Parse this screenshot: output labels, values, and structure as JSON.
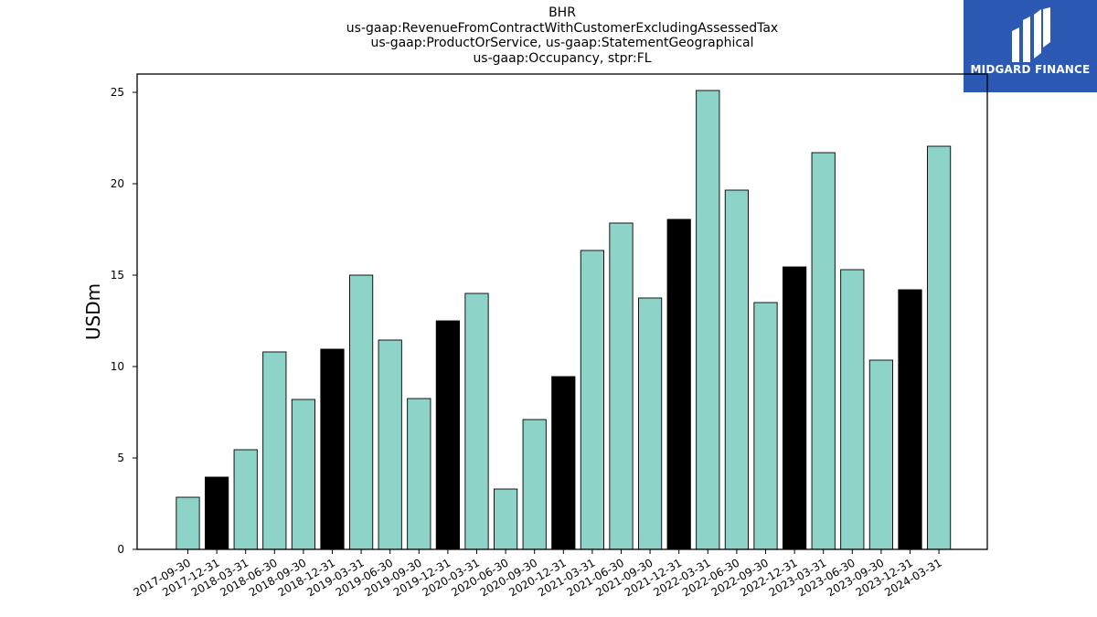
{
  "chart_data": {
    "type": "bar",
    "title_lines": [
      "BHR",
      "us-gaap:RevenueFromContractWithCustomerExcludingAssessedTax",
      "us-gaap:ProductOrService, us-gaap:StatementGeographical",
      "us-gaap:Occupancy, stpr:FL"
    ],
    "xlabel": "",
    "ylabel": "USDm",
    "ylim": [
      0,
      26
    ],
    "yticks": [
      0,
      5,
      10,
      15,
      20,
      25
    ],
    "grid": false,
    "categories": [
      "2017-09-30",
      "2017-12-31",
      "2018-03-31",
      "2018-06-30",
      "2018-09-30",
      "2018-12-31",
      "2019-03-31",
      "2019-06-30",
      "2019-09-30",
      "2019-12-31",
      "2020-03-31",
      "2020-06-30",
      "2020-09-30",
      "2020-12-31",
      "2021-03-31",
      "2021-06-30",
      "2021-09-30",
      "2021-12-31",
      "2022-03-31",
      "2022-06-30",
      "2022-09-30",
      "2022-12-31",
      "2023-03-31",
      "2023-06-30",
      "2023-09-30",
      "2023-12-31",
      "2024-03-31"
    ],
    "values": [
      2.85,
      3.95,
      5.45,
      10.8,
      8.2,
      10.95,
      15.0,
      11.45,
      8.25,
      12.5,
      14.0,
      3.3,
      7.1,
      9.45,
      16.35,
      17.85,
      13.75,
      18.05,
      25.1,
      19.65,
      13.5,
      15.45,
      21.7,
      15.3,
      10.35,
      14.2,
      22.05
    ],
    "bar_colors": {
      "quarter": "#8dd3c7",
      "year_end": "#000000",
      "edge": "#000000"
    }
  },
  "logo": {
    "text": "MIDGARD FINANCE",
    "background": "#2b59b4"
  }
}
